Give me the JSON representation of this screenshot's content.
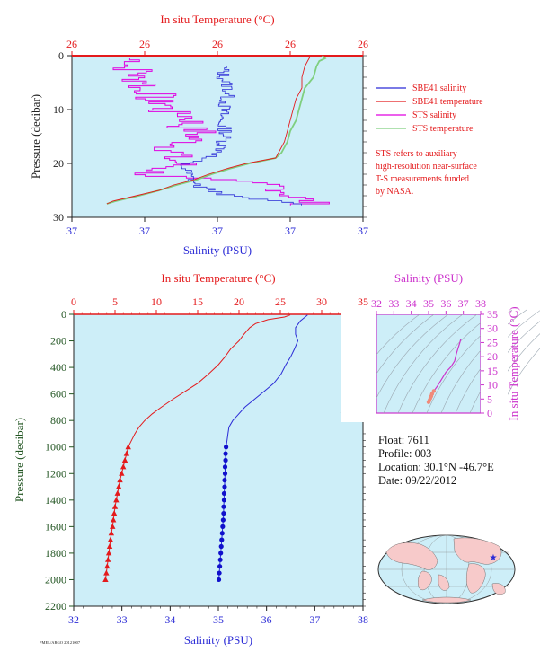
{
  "colors": {
    "plot_bg": "#cdeef8",
    "temperature": "#e41a1c",
    "salinity_blue": "#2b2bd6",
    "sts_salinity": "#e000e0",
    "sts_temperature": "#7fcf7f",
    "magenta_axis": "#cc33cc",
    "pressure_axis": "#225522"
  },
  "chart_data": [
    {
      "name": "upper-profile",
      "type": "line",
      "top_axis_title": "In situ Temperature (°C)",
      "bottom_axis_title": "Salinity (PSU)",
      "y_axis_title": "Pressure (decibar)",
      "top_ticks": [
        "26",
        "26",
        "26",
        "26",
        "26"
      ],
      "bottom_ticks": [
        "37",
        "37",
        "37",
        "37",
        "37"
      ],
      "y_ticks": [
        "0",
        "10",
        "20",
        "30"
      ],
      "ylim": [
        0,
        30
      ],
      "y_inverted": true,
      "legend": [
        "SBE41 salinity",
        "SBE41 temperature",
        "STS salinity",
        "STS temperature"
      ],
      "note": [
        "STS refers to auxiliary",
        "high-resolution near-surface",
        "T-S measurements funded",
        "by NASA."
      ],
      "series": [
        {
          "name": "SBE41 salinity",
          "pressure": [
            2,
            4,
            6,
            8,
            10,
            12,
            14,
            16,
            18,
            20,
            22,
            24,
            26,
            27.5
          ],
          "x_frac": [
            0.52,
            0.52,
            0.54,
            0.53,
            0.52,
            0.51,
            0.53,
            0.52,
            0.51,
            0.38,
            0.4,
            0.43,
            0.55,
            0.8
          ]
        },
        {
          "name": "SBE41 temperature",
          "pressure": [
            0,
            1,
            2,
            4,
            6,
            8,
            10,
            12,
            14,
            16,
            18,
            19,
            20,
            21,
            22,
            23,
            24,
            25,
            26,
            27,
            27.5
          ],
          "x_frac": [
            0.82,
            0.81,
            0.8,
            0.79,
            0.79,
            0.77,
            0.76,
            0.75,
            0.74,
            0.73,
            0.71,
            0.7,
            0.6,
            0.53,
            0.47,
            0.42,
            0.35,
            0.3,
            0.22,
            0.14,
            0.12
          ]
        },
        {
          "name": "STS salinity",
          "pressure": [
            0.5,
            1,
            2,
            3,
            4,
            5,
            6,
            7,
            8,
            9,
            10,
            11,
            12,
            13,
            14,
            15,
            16,
            17,
            18,
            19,
            20,
            21,
            22,
            23,
            24,
            25,
            26,
            27
          ],
          "x_frac": [
            0.2,
            0.24,
            0.18,
            0.25,
            0.2,
            0.28,
            0.22,
            0.3,
            0.26,
            0.34,
            0.3,
            0.4,
            0.42,
            0.38,
            0.44,
            0.42,
            0.4,
            0.34,
            0.36,
            0.34,
            0.38,
            0.3,
            0.26,
            0.5,
            0.7,
            0.74,
            0.76,
            0.82
          ]
        },
        {
          "name": "STS temperature",
          "pressure": [
            0,
            0.5,
            1,
            2,
            4,
            6,
            8,
            10,
            12,
            14,
            16,
            18,
            19,
            20,
            21,
            22,
            23,
            24,
            25,
            26,
            27,
            27.5
          ],
          "x_frac": [
            0.86,
            0.87,
            0.85,
            0.84,
            0.83,
            0.8,
            0.79,
            0.78,
            0.77,
            0.75,
            0.74,
            0.72,
            0.7,
            0.61,
            0.54,
            0.48,
            0.43,
            0.36,
            0.3,
            0.23,
            0.15,
            0.12
          ]
        }
      ]
    },
    {
      "name": "main-profile",
      "type": "line",
      "top_axis_title": "In situ Temperature (°C)",
      "bottom_axis_title": "Salinity (PSU)",
      "y_axis_title": "Pressure (decibar)",
      "temperature_range": [
        0,
        35
      ],
      "salinity_range": [
        32,
        38
      ],
      "ylim": [
        0,
        2200
      ],
      "y_inverted": true,
      "top_ticks": [
        "0",
        "5",
        "10",
        "15",
        "20",
        "25",
        "30",
        "35"
      ],
      "bottom_ticks": [
        "32",
        "33",
        "34",
        "35",
        "36",
        "37",
        "38"
      ],
      "y_ticks": [
        "0",
        "200",
        "400",
        "600",
        "800",
        "1000",
        "1200",
        "1400",
        "1600",
        "1800",
        "2000",
        "2200"
      ],
      "series": [
        {
          "name": "temperature",
          "pressure": [
            5,
            20,
            40,
            70,
            100,
            150,
            200,
            260,
            320,
            380,
            450,
            520,
            580,
            640,
            700,
            750,
            800,
            850,
            900,
            950,
            1000
          ],
          "values": [
            26.2,
            25.5,
            23.5,
            22.0,
            21.3,
            20.6,
            20.0,
            19.0,
            18.3,
            17.5,
            16.3,
            15.0,
            13.5,
            12.0,
            10.6,
            9.5,
            8.6,
            7.9,
            7.4,
            7.0,
            6.6
          ]
        },
        {
          "name": "salinity",
          "pressure": [
            5,
            20,
            50,
            100,
            150,
            200,
            260,
            320,
            380,
            450,
            520,
            580,
            640,
            700,
            760,
            800,
            850,
            900,
            950,
            1000
          ],
          "values": [
            36.85,
            36.8,
            36.7,
            36.6,
            36.6,
            36.65,
            36.58,
            36.5,
            36.4,
            36.3,
            36.15,
            35.95,
            35.75,
            35.55,
            35.4,
            35.3,
            35.22,
            35.2,
            35.18,
            35.16
          ]
        },
        {
          "name": "temperature-samples",
          "pressure": [
            1000,
            1050,
            1100,
            1150,
            1200,
            1250,
            1300,
            1350,
            1400,
            1450,
            1500,
            1550,
            1600,
            1650,
            1700,
            1750,
            1800,
            1850,
            1900,
            1950,
            2000
          ],
          "values": [
            6.6,
            6.4,
            6.2,
            6.0,
            5.8,
            5.6,
            5.45,
            5.3,
            5.15,
            5.0,
            4.9,
            4.8,
            4.7,
            4.55,
            4.45,
            4.35,
            4.25,
            4.15,
            4.05,
            3.95,
            3.85
          ]
        },
        {
          "name": "salinity-samples",
          "pressure": [
            1000,
            1050,
            1100,
            1150,
            1200,
            1250,
            1300,
            1350,
            1400,
            1450,
            1500,
            1550,
            1600,
            1650,
            1700,
            1750,
            1800,
            1850,
            1900,
            1950,
            2000
          ],
          "values": [
            35.16,
            35.15,
            35.15,
            35.14,
            35.14,
            35.13,
            35.13,
            35.12,
            35.12,
            35.11,
            35.11,
            35.1,
            35.09,
            35.08,
            35.07,
            35.06,
            35.05,
            35.04,
            35.03,
            35.02,
            35.01
          ]
        }
      ]
    },
    {
      "name": "ts-diagram",
      "type": "line",
      "top_axis_title": "Salinity (PSU)",
      "right_axis_title": "In situ Temperature (°C)",
      "salinity_range": [
        32,
        38
      ],
      "temperature_range": [
        0,
        35
      ],
      "top_ticks": [
        "32",
        "33",
        "34",
        "35",
        "36",
        "37",
        "38"
      ],
      "right_ticks": [
        "0",
        "5",
        "10",
        "15",
        "20",
        "25",
        "30",
        "35"
      ],
      "series": [
        {
          "name": "ts-curve",
          "salinity": [
            36.85,
            36.8,
            36.6,
            36.5,
            36.3,
            36.0,
            35.7,
            35.5,
            35.3,
            35.2,
            35.15,
            35.1,
            35.05,
            35.0
          ],
          "temperature": [
            26.2,
            25.0,
            21.0,
            18.5,
            16.5,
            14.5,
            11.5,
            9.5,
            7.8,
            6.8,
            6.0,
            5.3,
            4.5,
            3.9
          ]
        }
      ]
    }
  ],
  "float_info": {
    "float": "Float:  7611",
    "profile": "Profile:  003",
    "location": "Location:  30.1°N  -46.7°E",
    "date": "Date:  09/22/2012"
  },
  "footer_text": "PMEL/ARGO  20121007"
}
